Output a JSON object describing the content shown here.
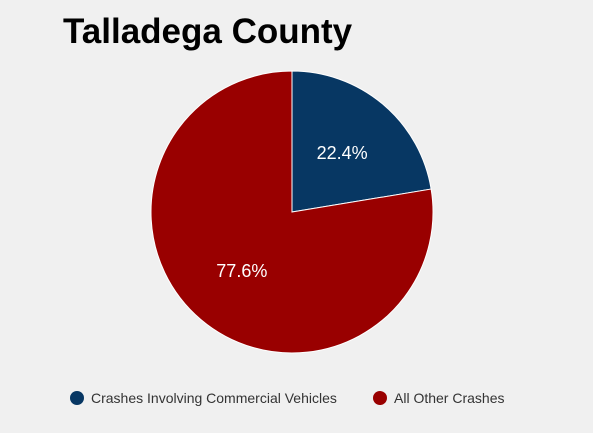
{
  "chart_data": {
    "type": "pie",
    "title": "Talladega County",
    "slices": [
      {
        "name": "Crashes Involving Commercial Vehicles",
        "value": 22.4,
        "label": "22.4%",
        "color": "#073763"
      },
      {
        "name": "All Other Crashes",
        "value": 77.6,
        "label": "77.6%",
        "color": "#990000"
      }
    ],
    "legend_position": "bottom",
    "start_angle": "12 o'clock",
    "direction": "clockwise"
  },
  "legend": {
    "items": [
      {
        "label": "Crashes Involving Commercial Vehicles",
        "color": "#073763"
      },
      {
        "label": "All Other Crashes",
        "color": "#990000"
      }
    ]
  }
}
